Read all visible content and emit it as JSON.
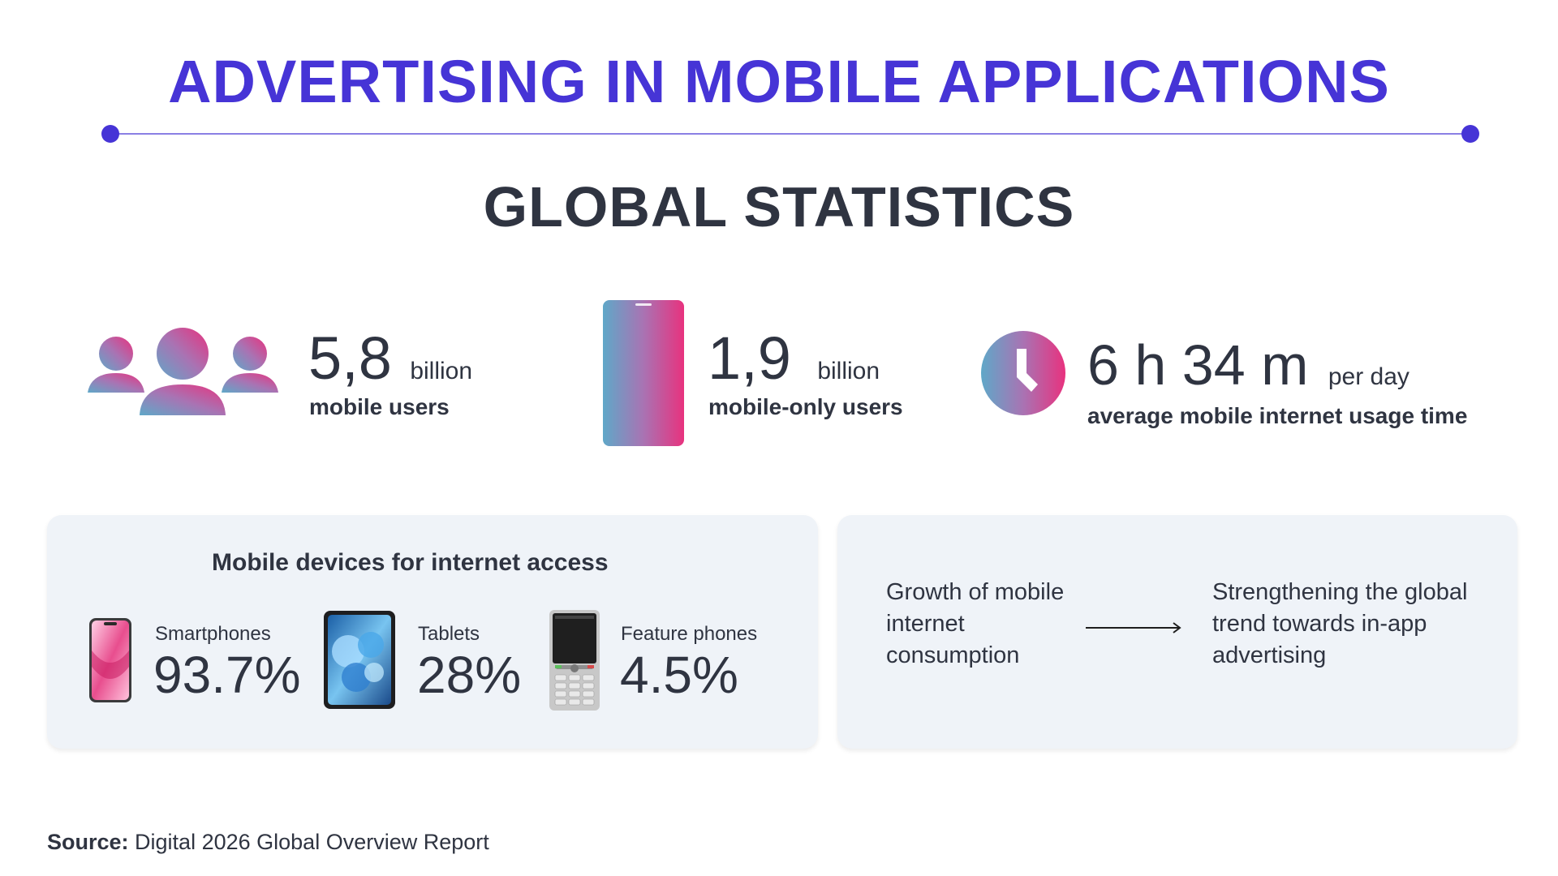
{
  "header": {
    "title": "ADVERTISING IN MOBILE APPLICATIONS",
    "subtitle": "GLOBAL STATISTICS"
  },
  "stats": [
    {
      "value": "5,8",
      "unit": "billion",
      "caption": "mobile users",
      "icon": "users-group-icon"
    },
    {
      "value": "1,9",
      "unit": "billion",
      "caption": "mobile-only users",
      "icon": "smartphone-icon"
    },
    {
      "value": "6 h 34 m",
      "unit": "per day",
      "caption": "average mobile internet usage time",
      "icon": "clock-icon"
    }
  ],
  "devices_card": {
    "title": "Mobile devices for internet access",
    "devices": [
      {
        "label": "Smartphones",
        "value": "93.7%",
        "icon": "smartphone-photo-icon"
      },
      {
        "label": "Tablets",
        "value": "28%",
        "icon": "tablet-photo-icon"
      },
      {
        "label": "Feature phones",
        "value": "4.5%",
        "icon": "feature-phone-icon"
      }
    ]
  },
  "trend_card": {
    "left_text": "Growth of mobile internet consumption",
    "right_text": "Strengthening the global trend towards in-app advertising",
    "arrow_icon": "arrow-right-icon"
  },
  "source": {
    "label": "Source:",
    "text": "Digital 2026 Global Overview Report"
  },
  "colors": {
    "accent": "#4634d6",
    "text": "#2f3441",
    "card_bg": "#eff3f8",
    "gradient_start": "#5fa8c8",
    "gradient_end": "#e8327e"
  }
}
